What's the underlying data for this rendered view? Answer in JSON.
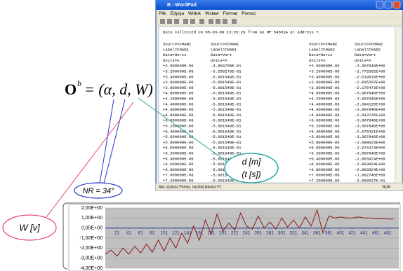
{
  "window": {
    "title": "B - WordPad",
    "menu": [
      "Plik",
      "Edycja",
      "Widok",
      "Wstaw",
      "Format",
      "Pomoc"
    ],
    "header_line": "Data collected on 05-03-08 13:26:29 from an HP 54501A at address 7.",
    "rows": [
      [
        "Source=CHAN1",
        "Source=CHAN1",
        "Source=CHAN2",
        "Source=CHAN2"
      ],
      [
        "Label=CHAN1",
        "Label=CHAN1",
        "Label=CHAN2",
        "Label=CHAN2"
      ],
      [
        "Data=Horiz",
        "Data=Vert",
        "Data=Horiz",
        "Data=Vert"
      ],
      [
        "Units=s",
        "Units=V",
        "Units=s",
        "Units=V"
      ],
      [
        "+3.000000E-06",
        "-4.804705E-01",
        "+3.000000E-06",
        "-3.007846E+00"
      ],
      [
        "+3.200000E-06",
        "-5.206275E-01",
        "+3.200000E-06",
        "-2.772552E+00"
      ],
      [
        "+3.400000E-06",
        "-5.601549E-01",
        "+3.400000E-06",
        "-2.019610E+00"
      ],
      [
        "+3.600000E-06",
        "-5.601549E-01",
        "+3.600000E-06",
        "-2.835297E+00"
      ],
      [
        "+3.800000E-06",
        "-5.601549E-01",
        "+3.800000E-06",
        "-2.176473E+00"
      ],
      [
        "+4.000000E-06",
        "-5.601549E-01",
        "+4.000000E-06",
        "-3.007846E+00"
      ],
      [
        "+4.200000E-06",
        "-5.601549E-01",
        "+4.200000E-06",
        "-3.007846E+00"
      ],
      [
        "+4.400000E-06",
        "-5.601549E-01",
        "+4.400000E-06",
        "-2.694120E+00"
      ],
      [
        "+4.600000E-06",
        "-5.601549E-01",
        "+4.600000E-06",
        "-3.007846E+00"
      ],
      [
        "+4.800000E-06",
        "-5.601549E-01",
        "+4.800000E-06",
        "-2.913725E+00"
      ],
      [
        "+5.000000E-06",
        "-5.601549E-01",
        "+5.000000E-06",
        "-3.007846E+00"
      ],
      [
        "+5.200000E-06",
        "-5.601549E-01",
        "+5.200000E-06",
        "-3.007846E+00"
      ],
      [
        "+5.400000E-06",
        "-5.601549E-01",
        "+5.400000E-06",
        "-2.678431E+00"
      ],
      [
        "+5.600000E-06",
        "-5.601549E-01",
        "+5.600000E-06",
        "-3.007846E+00"
      ],
      [
        "+5.800000E-06",
        "-5.601549E-01",
        "+5.800000E-06",
        "-2.090023E+00"
      ],
      [
        "+6.000000E-06",
        "-5.601549E-01",
        "+6.000000E-06",
        "-2.974474E+00"
      ],
      [
        "+6.200000E-06",
        "-5.601549E-01",
        "+6.200000E-06",
        "-3.007846E+00"
      ],
      [
        "+6.400000E-06",
        "-5.601549E-01",
        "+6.400000E-06",
        "-2.803924E+00"
      ],
      [
        "+6.600000E-06",
        "-5.601549E-01",
        "+6.600000E-06",
        "-2.803924E+00"
      ],
      [
        "+6.800000E-06",
        "-5.601549E-01",
        "+6.800000E-06",
        "-2.803924E+00"
      ],
      [
        "+7.000000E-06",
        "-5.601549E-01",
        "+7.000000E-06",
        "-1.062745E+00"
      ],
      [
        "+7.200000E-06",
        "-5.601549E-01",
        "+7.200000E-06",
        "-3.568627E-01"
      ]
    ],
    "status": "Aby uzyskać Pomoc, naciśnij klawisz F1",
    "status_right": "NUM"
  },
  "formula": {
    "base": "O",
    "superscript": "b",
    "expression": "= (α, d, W)"
  },
  "labels": {
    "distance": "d [m]",
    "time": "(t [s])",
    "nr": "NR = 34°",
    "voltage": "W [v]"
  },
  "chart_data": {
    "type": "line",
    "xlim": [
      1,
      500
    ],
    "xticks": [
      21,
      41,
      61,
      81,
      101,
      121,
      141,
      161,
      181,
      201,
      221,
      241,
      261,
      281,
      301,
      321,
      341,
      361,
      381,
      401,
      421,
      441,
      461,
      481
    ],
    "ylim": [
      -4,
      2
    ],
    "yticks": [
      {
        "value": 2,
        "label": "2,00E+00"
      },
      {
        "value": 1,
        "label": "1,00E+00"
      },
      {
        "value": 0,
        "label": "0,00E+00"
      },
      {
        "value": -1,
        "label": "-1,00E+00"
      },
      {
        "value": -2,
        "label": "-2,00E+00"
      },
      {
        "value": -3,
        "label": "-3,00E+00"
      },
      {
        "value": -4,
        "label": "-4,00E+00"
      }
    ],
    "grid": true,
    "series": [
      {
        "color": "#8b1a1a",
        "x": [
          1,
          11,
          21,
          31,
          41,
          51,
          61,
          71,
          81,
          91,
          101,
          111,
          121,
          131,
          141,
          151,
          161,
          171,
          181,
          191,
          201,
          211,
          221,
          231,
          241,
          251,
          261,
          271,
          281,
          291,
          301,
          311,
          321,
          331,
          341,
          351,
          361,
          371,
          381,
          391,
          401,
          411,
          421,
          431,
          441,
          451,
          461,
          471,
          481,
          491
        ],
        "values": [
          -2.6,
          -2.2,
          -2.8,
          -2.0,
          -2.6,
          -1.8,
          -2.5,
          -1.6,
          -2.4,
          -1.2,
          -2.3,
          -1.0,
          -2.0,
          -0.5,
          -1.5,
          0.2,
          -1.2,
          0.8,
          -0.6,
          1.4,
          -0.3,
          0.5,
          -0.2,
          1.5,
          0.2,
          -0.1,
          1.2,
          0.0,
          0.6,
          -0.1,
          1.0,
          0.1,
          0.8,
          0.0,
          1.1,
          0.2,
          1.8,
          -0.5,
          1.2,
          1.0,
          1.1,
          1.0,
          1.0,
          1.1,
          1.0,
          1.0,
          0.95,
          0.95,
          0.9,
          0.9
        ]
      }
    ]
  }
}
